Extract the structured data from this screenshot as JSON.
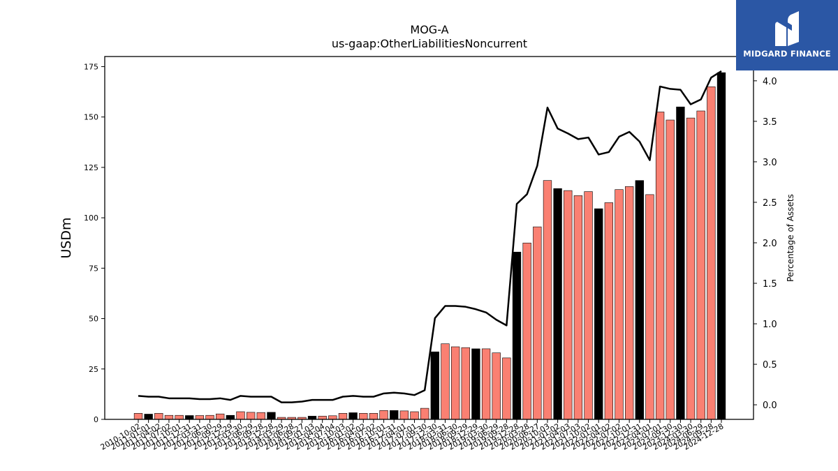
{
  "brand": {
    "name": "MIDGARD FINANCE",
    "logo_icon": "midgard-m-icon",
    "background": "#2b57a5"
  },
  "chart_data": {
    "type": "bar",
    "title": "MOG-A",
    "subtitle": "us-gaap:OtherLiabilitiesNoncurrent",
    "ylabel": "USDm",
    "y2label": "Percentage of Assets",
    "ylim": [
      0,
      180
    ],
    "y2lim": [
      -0.18,
      4.3
    ],
    "yticks": [
      0,
      25,
      50,
      75,
      100,
      125,
      150,
      175
    ],
    "y2ticks": [
      0.0,
      0.5,
      1.0,
      1.5,
      2.0,
      2.5,
      3.0,
      3.5,
      4.0
    ],
    "y2tick_labels": [
      "0.0",
      "0.5",
      "1.0",
      "1.5",
      "2.0",
      "2.5",
      "3.0",
      "3.5",
      "4.0"
    ],
    "colors": {
      "quarterly": "#fa8072",
      "annual": "#000000",
      "line": "#000000"
    },
    "categories": [
      "2010-10-02",
      "2011-01-01",
      "2011-04-02",
      "2011-07-02",
      "2011-10-01",
      "2011-12-31",
      "2012-03-31",
      "2012-06-30",
      "2012-09-29",
      "2012-12-29",
      "2013-03-30",
      "2013-06-29",
      "2013-09-28",
      "2013-12-28",
      "2014-03-29",
      "2014-06-28",
      "2014-09-27",
      "2015-01-03",
      "2015-04-04",
      "2015-07-04",
      "2015-10-03",
      "2016-01-02",
      "2016-04-02",
      "2016-07-02",
      "2016-10-01",
      "2016-12-31",
      "2017-04-01",
      "2017-07-01",
      "2017-09-30",
      "2017-12-30",
      "2018-03-31",
      "2018-06-30",
      "2018-09-29",
      "2018-12-29",
      "2019-03-30",
      "2019-06-29",
      "2019-09-28",
      "2019-12-28",
      "2020-03-28",
      "2020-06-27",
      "2020-10-03",
      "2021-01-02",
      "2021-04-03",
      "2021-07-03",
      "2021-10-02",
      "2022-01-01",
      "2022-04-02",
      "2022-07-02",
      "2022-10-01",
      "2022-12-31",
      "2023-04-01",
      "2023-07-01",
      "2023-09-30",
      "2023-12-30",
      "2024-03-30",
      "2024-06-29",
      "2024-09-28",
      "2024-12-28"
    ],
    "tick_labels": [
      "2010-10-02",
      "2011-01-01",
      "2011-04-02",
      "2011-07-02",
      "2011-10-01",
      "2011-12-31",
      "2012-03-31",
      "2012-06-30",
      "2012-09-29",
      "2012-12-29",
      "2013-03-30",
      "2013-06-29",
      "2013-09-28",
      "2013-12-28",
      "2014-03-29",
      "2014-06-28",
      "2014-09-27",
      "2015-01-03",
      "2015-04-04",
      "2015-07-04",
      "2015-10-03",
      "2016-01-02",
      "2016-04-02",
      "2016-07-02",
      "2016-10-01",
      "2016-12-31",
      "2017-04-01",
      "2017-07-01",
      "2017-09-30",
      "2017-12-30",
      "2018-03-31",
      "2018-06-30",
      "2018-09-29",
      "2018-12-29",
      "2019-03-30",
      "2019-06-29",
      "2019-09-28",
      "2019-12-28",
      "2020-03-28",
      "2020-06-27",
      "2020-10-03",
      "2021-01-02",
      "2021-04-03",
      "2021-07-03",
      "2021-10-02",
      "2022-01-01",
      "2022-04-02",
      "2022-07-02",
      "2022-10-01",
      "2022-12-31",
      "2023-04-01",
      "2023-07-01",
      "2023-09-30",
      "2023-12-30",
      "2024-03-30",
      "2024-06-29",
      "2024-09-28",
      "2024-12-28"
    ],
    "values": [
      3.0,
      2.6,
      3.0,
      2.0,
      2.0,
      1.9,
      1.9,
      2.0,
      2.7,
      2.0,
      3.8,
      3.5,
      3.4,
      3.5,
      1.0,
      1.0,
      1.0,
      1.6,
      1.6,
      1.8,
      3.0,
      3.3,
      3.0,
      3.0,
      4.4,
      4.4,
      4.2,
      3.8,
      5.5,
      33.5,
      37.5,
      36.0,
      35.6,
      35.0,
      35.0,
      33.0,
      30.5,
      83.0,
      87.5,
      95.5,
      118.5,
      114.5,
      113.5,
      111.0,
      113.0,
      104.5,
      107.5,
      114.0,
      115.5,
      118.5,
      111.5,
      152.5,
      148.5,
      155.0,
      149.5,
      153.0,
      165.0,
      172.0
    ],
    "annual": [
      false,
      true,
      false,
      false,
      false,
      true,
      false,
      false,
      false,
      true,
      false,
      false,
      false,
      true,
      false,
      false,
      false,
      true,
      false,
      false,
      false,
      true,
      false,
      false,
      false,
      true,
      false,
      false,
      false,
      true,
      false,
      false,
      false,
      true,
      false,
      false,
      false,
      true,
      false,
      false,
      false,
      true,
      false,
      false,
      false,
      true,
      false,
      false,
      false,
      true,
      false,
      false,
      false,
      true,
      false,
      false,
      false,
      true
    ],
    "pct_assets": [
      0.11,
      0.1,
      0.1,
      0.08,
      0.08,
      0.08,
      0.07,
      0.07,
      0.08,
      0.06,
      0.11,
      0.1,
      0.1,
      0.1,
      0.03,
      0.03,
      0.04,
      0.06,
      0.06,
      0.06,
      0.1,
      0.11,
      0.1,
      0.1,
      0.14,
      0.15,
      0.14,
      0.12,
      0.18,
      1.07,
      1.22,
      1.22,
      1.21,
      1.18,
      1.14,
      1.05,
      0.98,
      2.48,
      2.6,
      2.95,
      3.67,
      3.41,
      3.35,
      3.28,
      3.3,
      3.09,
      3.12,
      3.31,
      3.37,
      3.25,
      3.02,
      3.93,
      3.9,
      3.89,
      3.71,
      3.77,
      4.04,
      4.12
    ]
  }
}
